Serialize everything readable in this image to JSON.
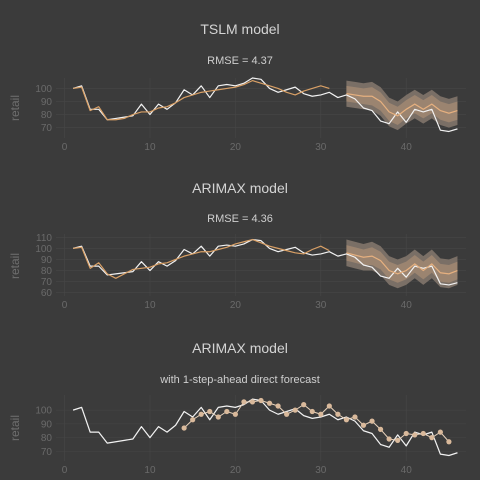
{
  "colors": {
    "background": "#3b3b3b",
    "actual": "#f2f2f2",
    "fitted": "#d9a066",
    "band_outer": "#7a6f66",
    "band_inner": "#9b8470",
    "forecast_mean": "#e6b07f",
    "points": "#d9b99b",
    "points_line": "#e8d2bb"
  },
  "chart_data": [
    {
      "type": "line",
      "title": "TSLM model",
      "subtitle": "RMSE = 4.37",
      "xlabel": "",
      "ylabel": "retail",
      "xlim": [
        -1,
        47
      ],
      "ylim": [
        62,
        108
      ],
      "yticks": [
        70,
        80,
        90,
        100
      ],
      "xticks": [
        0,
        10,
        20,
        30,
        40
      ],
      "grid": true,
      "x": [
        1,
        2,
        3,
        4,
        5,
        6,
        7,
        8,
        9,
        10,
        11,
        12,
        13,
        14,
        15,
        16,
        17,
        18,
        19,
        20,
        21,
        22,
        23,
        24,
        25,
        26,
        27,
        28,
        29,
        30,
        31,
        32,
        33,
        34,
        35,
        36,
        37,
        38,
        39,
        40,
        41,
        42,
        43,
        44,
        45,
        46
      ],
      "series": [
        {
          "values": [
            100,
            102,
            84,
            84,
            76,
            77,
            78,
            79,
            88,
            80,
            88,
            84,
            89,
            99,
            95,
            102,
            93,
            102,
            103,
            102,
            104,
            108,
            107,
            100,
            97,
            99,
            101,
            96,
            94,
            95,
            97,
            93,
            95,
            92,
            85,
            83,
            75,
            73,
            82,
            74,
            84,
            82,
            84,
            68,
            67,
            69
          ]
        },
        {
          "values": [
            100,
            101,
            83,
            86,
            76,
            76,
            77,
            80,
            82,
            82,
            85,
            86,
            89,
            93,
            95,
            97,
            98,
            99,
            100,
            101,
            103,
            106,
            104,
            102,
            100,
            97,
            95,
            98,
            100,
            102,
            100,
            null,
            null,
            null,
            null,
            null,
            null,
            null,
            null,
            null,
            null,
            null,
            null,
            null,
            null,
            null
          ]
        }
      ],
      "forecast": {
        "x": [
          33,
          34,
          35,
          36,
          37,
          38,
          39,
          40,
          41,
          42,
          43,
          44,
          45,
          46
        ],
        "mean": [
          96,
          95,
          94,
          94,
          90,
          82,
          79,
          84,
          88,
          84,
          88,
          83,
          81,
          83
        ],
        "lo80": [
          90,
          89,
          88,
          87,
          83,
          75,
          72,
          77,
          81,
          77,
          81,
          76,
          74,
          76
        ],
        "hi80": [
          102,
          101,
          100,
          101,
          97,
          89,
          86,
          91,
          95,
          91,
          95,
          90,
          88,
          90
        ],
        "lo95": [
          86,
          85,
          84,
          83,
          79,
          71,
          68,
          73,
          77,
          73,
          77,
          72,
          70,
          72
        ],
        "hi95": [
          106,
          105,
          104,
          105,
          101,
          93,
          90,
          95,
          99,
          95,
          99,
          94,
          92,
          94
        ]
      }
    },
    {
      "type": "line",
      "title": "ARIMAX model",
      "subtitle": "RMSE = 4.36",
      "xlabel": "",
      "ylabel": "retail",
      "xlim": [
        -1,
        47
      ],
      "ylim": [
        57,
        113
      ],
      "yticks": [
        60,
        70,
        80,
        90,
        100,
        110
      ],
      "xticks": [
        0,
        10,
        20,
        30,
        40
      ],
      "grid": true,
      "x": [
        1,
        2,
        3,
        4,
        5,
        6,
        7,
        8,
        9,
        10,
        11,
        12,
        13,
        14,
        15,
        16,
        17,
        18,
        19,
        20,
        21,
        22,
        23,
        24,
        25,
        26,
        27,
        28,
        29,
        30,
        31,
        32,
        33,
        34,
        35,
        36,
        37,
        38,
        39,
        40,
        41,
        42,
        43,
        44,
        45,
        46
      ],
      "series": [
        {
          "values": [
            100,
            102,
            84,
            84,
            76,
            77,
            78,
            79,
            88,
            80,
            88,
            84,
            89,
            99,
            95,
            102,
            93,
            102,
            103,
            102,
            104,
            108,
            107,
            100,
            97,
            99,
            101,
            96,
            94,
            95,
            97,
            93,
            95,
            92,
            85,
            83,
            75,
            73,
            82,
            74,
            84,
            82,
            84,
            68,
            67,
            69
          ]
        },
        {
          "values": [
            100,
            101,
            82,
            87,
            77,
            73,
            77,
            81,
            82,
            83,
            86,
            87,
            90,
            93,
            95,
            97,
            97,
            99,
            101,
            104,
            106,
            108,
            105,
            102,
            100,
            98,
            96,
            95,
            99,
            102,
            98,
            null,
            null,
            null,
            null,
            null,
            null,
            null,
            null,
            null,
            null,
            null,
            null,
            null,
            null,
            null
          ]
        }
      ],
      "forecast": {
        "x": [
          33,
          34,
          35,
          36,
          37,
          38,
          39,
          40,
          41,
          42,
          43,
          44,
          45,
          46
        ],
        "mean": [
          96,
          94,
          92,
          93,
          89,
          80,
          77,
          80,
          86,
          80,
          86,
          78,
          77,
          80
        ],
        "lo80": [
          89,
          87,
          85,
          85,
          81,
          72,
          69,
          72,
          78,
          72,
          78,
          70,
          69,
          72
        ],
        "hi80": [
          103,
          101,
          99,
          101,
          97,
          88,
          85,
          88,
          94,
          88,
          94,
          86,
          85,
          88
        ],
        "lo95": [
          84,
          82,
          80,
          80,
          76,
          67,
          64,
          67,
          73,
          67,
          73,
          65,
          64,
          67
        ],
        "hi95": [
          108,
          106,
          104,
          106,
          102,
          93,
          90,
          93,
          99,
          93,
          99,
          91,
          90,
          93
        ]
      }
    },
    {
      "type": "line",
      "title": "ARIMAX model",
      "subtitle": "with 1-step-ahead direct forecast",
      "xlabel": "",
      "ylabel": "retail",
      "xlim": [
        -1,
        47
      ],
      "ylim": [
        63,
        111
      ],
      "yticks": [
        70,
        80,
        90,
        100
      ],
      "xticks": [
        0,
        10,
        20,
        30,
        40
      ],
      "grid": true,
      "x": [
        1,
        2,
        3,
        4,
        5,
        6,
        7,
        8,
        9,
        10,
        11,
        12,
        13,
        14,
        15,
        16,
        17,
        18,
        19,
        20,
        21,
        22,
        23,
        24,
        25,
        26,
        27,
        28,
        29,
        30,
        31,
        32,
        33,
        34,
        35,
        36,
        37,
        38,
        39,
        40,
        41,
        42,
        43,
        44,
        45,
        46
      ],
      "series": [
        {
          "values": [
            100,
            102,
            84,
            84,
            76,
            77,
            78,
            79,
            88,
            80,
            88,
            84,
            89,
            99,
            95,
            102,
            93,
            102,
            103,
            102,
            104,
            108,
            107,
            100,
            97,
            99,
            101,
            96,
            94,
            95,
            97,
            93,
            95,
            92,
            85,
            83,
            75,
            73,
            82,
            74,
            84,
            82,
            84,
            68,
            67,
            69
          ]
        }
      ],
      "points": {
        "x": [
          14,
          15,
          16,
          17,
          18,
          19,
          20,
          21,
          22,
          23,
          24,
          25,
          26,
          27,
          28,
          29,
          30,
          31,
          32,
          33,
          34,
          35,
          36,
          37,
          38,
          39,
          40,
          41,
          42,
          43,
          44,
          45
        ],
        "y": [
          87,
          93,
          97,
          99,
          95,
          99,
          97,
          106,
          106,
          107,
          105,
          103,
          97,
          100,
          104,
          99,
          97,
          103,
          97,
          93,
          95,
          89,
          92,
          86,
          79,
          78,
          83,
          82,
          83,
          80,
          84,
          77
        ]
      }
    }
  ]
}
